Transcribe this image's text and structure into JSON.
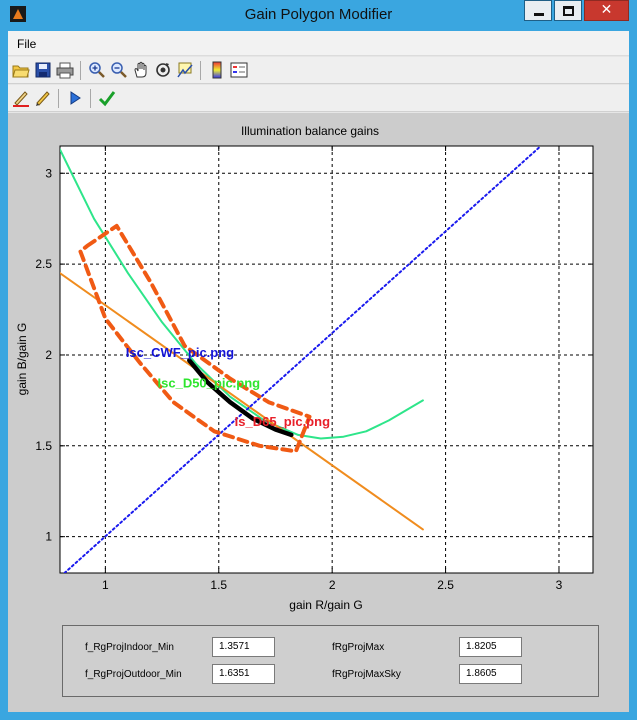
{
  "window": {
    "title": "Gain Polygon Modifier"
  },
  "menu": {
    "items": [
      "File"
    ]
  },
  "toolbar1": {
    "icons": [
      "open-folder-icon",
      "save-icon",
      "print-icon",
      "zoom-in-icon",
      "zoom-out-icon",
      "pan-hand-icon",
      "rotate-3d-icon",
      "data-cursor-icon",
      "colorbar-icon",
      "legend-icon"
    ]
  },
  "toolbar2": {
    "icons": [
      "pen-draw-icon",
      "pencil-edit-icon",
      "play-icon",
      "checkmark-icon"
    ]
  },
  "chart_data": {
    "type": "line",
    "title": "Illumination balance gains",
    "xlabel": "gain R/gain G",
    "ylabel": "gain B/gain G",
    "xlim": [
      0.8,
      3.15
    ],
    "ylim": [
      0.8,
      3.15
    ],
    "xticks": [
      "1",
      "1.5",
      "2",
      "2.5",
      "3"
    ],
    "yticks": [
      "1",
      "1.5",
      "2",
      "2.5",
      "3"
    ],
    "grid": true,
    "series": [
      {
        "color": "#2ee58a",
        "style": "solid",
        "x": [
          0.8,
          0.95,
          1.1,
          1.25,
          1.4,
          1.55,
          1.7,
          1.85,
          1.95,
          2.05,
          2.15,
          2.25,
          2.4
        ],
        "y": [
          3.13,
          2.75,
          2.45,
          2.18,
          1.95,
          1.77,
          1.64,
          1.56,
          1.54,
          1.55,
          1.58,
          1.64,
          1.75
        ]
      },
      {
        "color": "#f08c1e",
        "style": "solid",
        "x": [
          0.8,
          2.4
        ],
        "y": [
          2.45,
          1.04
        ]
      },
      {
        "color": "#1a1aee",
        "style": "dotted",
        "x": [
          0.82,
          2.92
        ],
        "y": [
          0.8,
          3.15
        ]
      },
      {
        "color": "#000000",
        "style": "thick",
        "x": [
          1.37,
          1.45,
          1.55,
          1.65,
          1.75,
          1.82
        ],
        "y": [
          1.97,
          1.85,
          1.74,
          1.65,
          1.59,
          1.56
        ]
      },
      {
        "color": "#f05a14",
        "style": "dashed",
        "x": [
          0.92,
          1.05,
          1.2,
          1.35,
          1.55,
          1.72,
          1.9,
          1.84,
          1.68,
          1.48,
          1.3,
          1.15,
          1.0,
          0.89,
          0.92
        ],
        "y": [
          2.6,
          2.71,
          2.4,
          2.05,
          1.87,
          1.74,
          1.66,
          1.47,
          1.5,
          1.58,
          1.74,
          1.96,
          2.2,
          2.57,
          2.6
        ]
      }
    ],
    "annotations": [
      {
        "text": "Isc_CWF_pic.png",
        "x": 1.09,
        "y": 1.99,
        "color": "#1515d8"
      },
      {
        "text": "Isc_D50_pic.png",
        "x": 1.23,
        "y": 1.82,
        "color": "#2ee52e"
      },
      {
        "text": "Is_D65_pic.png",
        "x": 1.57,
        "y": 1.61,
        "color": "#e8202a"
      }
    ]
  },
  "params": {
    "rows": [
      {
        "label1": "f_RgProjIndoor_Min",
        "value1": "1.3571",
        "label2": "fRgProjMax",
        "value2": "1.8205"
      },
      {
        "label1": "f_RgProjOutdoor_Min",
        "value1": "1.6351",
        "label2": "fRgProjMaxSky",
        "value2": "1.8605"
      }
    ]
  }
}
